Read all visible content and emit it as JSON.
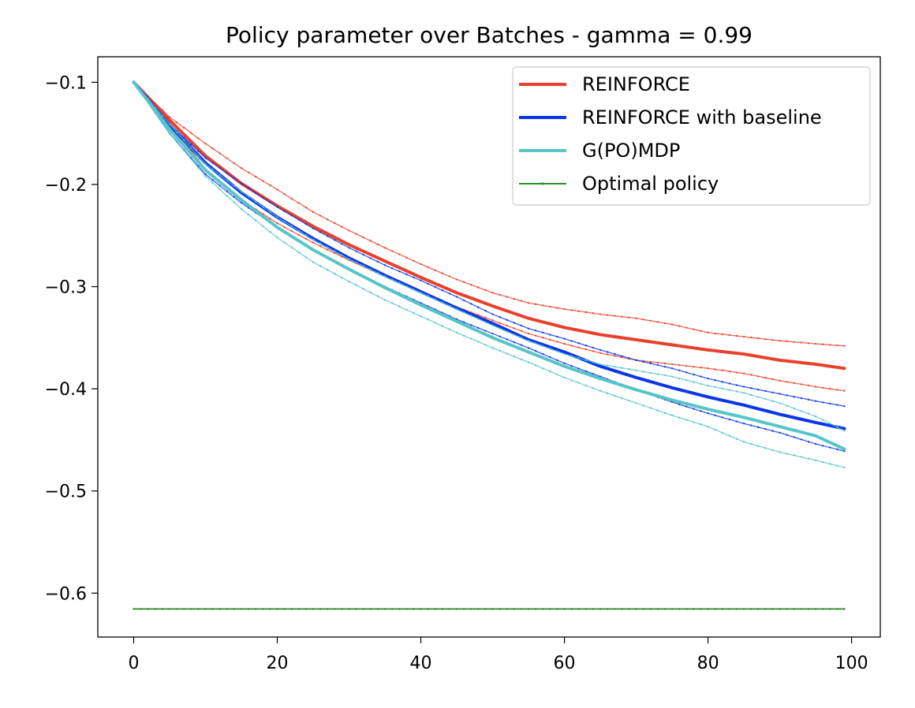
{
  "chart_data": {
    "type": "line",
    "title": "Policy parameter over Batches - gamma = 0.99",
    "xlabel": "",
    "ylabel": "",
    "xlim": [
      -5,
      104
    ],
    "ylim": [
      -0.643,
      -0.075
    ],
    "x_ticks": [
      0,
      20,
      40,
      60,
      80,
      100
    ],
    "y_ticks": [
      -0.6,
      -0.5,
      -0.4,
      -0.3,
      -0.2,
      -0.1
    ],
    "x_tick_labels": [
      "0",
      "20",
      "40",
      "60",
      "80",
      "100"
    ],
    "y_tick_labels": [
      "−0.6",
      "−0.5",
      "−0.4",
      "−0.3",
      "−0.2",
      "−0.1"
    ],
    "grid": false,
    "legend_position": "top-right",
    "x_max_index": 99,
    "series": [
      {
        "name": "REINFORCE",
        "color": "#e8412b",
        "kind": "mean",
        "points": [
          [
            0,
            -0.1
          ],
          [
            5,
            -0.137
          ],
          [
            10,
            -0.172
          ],
          [
            15,
            -0.199
          ],
          [
            20,
            -0.221
          ],
          [
            25,
            -0.241
          ],
          [
            30,
            -0.259
          ],
          [
            35,
            -0.275
          ],
          [
            40,
            -0.291
          ],
          [
            45,
            -0.306
          ],
          [
            50,
            -0.319
          ],
          [
            55,
            -0.331
          ],
          [
            60,
            -0.34
          ],
          [
            65,
            -0.347
          ],
          [
            70,
            -0.352
          ],
          [
            75,
            -0.357
          ],
          [
            80,
            -0.362
          ],
          [
            85,
            -0.366
          ],
          [
            90,
            -0.372
          ],
          [
            95,
            -0.376
          ],
          [
            99,
            -0.38
          ]
        ]
      },
      {
        "name": "REINFORCE upper band",
        "color": "#e8412b",
        "kind": "band",
        "points": [
          [
            0,
            -0.1
          ],
          [
            5,
            -0.134
          ],
          [
            10,
            -0.16
          ],
          [
            15,
            -0.184
          ],
          [
            20,
            -0.205
          ],
          [
            25,
            -0.227
          ],
          [
            30,
            -0.245
          ],
          [
            35,
            -0.262
          ],
          [
            40,
            -0.278
          ],
          [
            45,
            -0.293
          ],
          [
            50,
            -0.306
          ],
          [
            55,
            -0.316
          ],
          [
            60,
            -0.322
          ],
          [
            65,
            -0.327
          ],
          [
            70,
            -0.331
          ],
          [
            75,
            -0.337
          ],
          [
            80,
            -0.345
          ],
          [
            85,
            -0.349
          ],
          [
            90,
            -0.353
          ],
          [
            95,
            -0.356
          ],
          [
            99,
            -0.358
          ]
        ]
      },
      {
        "name": "REINFORCE lower band",
        "color": "#e8412b",
        "kind": "band",
        "points": [
          [
            0,
            -0.1
          ],
          [
            5,
            -0.14
          ],
          [
            10,
            -0.185
          ],
          [
            15,
            -0.215
          ],
          [
            20,
            -0.238
          ],
          [
            25,
            -0.257
          ],
          [
            30,
            -0.274
          ],
          [
            35,
            -0.29
          ],
          [
            40,
            -0.305
          ],
          [
            45,
            -0.32
          ],
          [
            50,
            -0.333
          ],
          [
            55,
            -0.346
          ],
          [
            60,
            -0.356
          ],
          [
            65,
            -0.365
          ],
          [
            70,
            -0.372
          ],
          [
            75,
            -0.376
          ],
          [
            80,
            -0.38
          ],
          [
            85,
            -0.385
          ],
          [
            90,
            -0.392
          ],
          [
            95,
            -0.398
          ],
          [
            99,
            -0.402
          ]
        ]
      },
      {
        "name": "REINFORCE with baseline",
        "color": "#0b36e8",
        "kind": "mean",
        "points": [
          [
            0,
            -0.1
          ],
          [
            5,
            -0.142
          ],
          [
            10,
            -0.179
          ],
          [
            15,
            -0.208
          ],
          [
            20,
            -0.232
          ],
          [
            25,
            -0.253
          ],
          [
            30,
            -0.272
          ],
          [
            35,
            -0.289
          ],
          [
            40,
            -0.305
          ],
          [
            45,
            -0.321
          ],
          [
            50,
            -0.336
          ],
          [
            55,
            -0.352
          ],
          [
            60,
            -0.364
          ],
          [
            65,
            -0.378
          ],
          [
            70,
            -0.389
          ],
          [
            75,
            -0.399
          ],
          [
            80,
            -0.408
          ],
          [
            85,
            -0.416
          ],
          [
            90,
            -0.425
          ],
          [
            95,
            -0.433
          ],
          [
            99,
            -0.439
          ]
        ]
      },
      {
        "name": "REINFORCE with baseline upper band",
        "color": "#0b36e8",
        "kind": "band",
        "points": [
          [
            0,
            -0.1
          ],
          [
            5,
            -0.141
          ],
          [
            10,
            -0.174
          ],
          [
            15,
            -0.199
          ],
          [
            20,
            -0.222
          ],
          [
            25,
            -0.243
          ],
          [
            30,
            -0.262
          ],
          [
            35,
            -0.279
          ],
          [
            40,
            -0.294
          ],
          [
            45,
            -0.31
          ],
          [
            50,
            -0.327
          ],
          [
            55,
            -0.341
          ],
          [
            60,
            -0.351
          ],
          [
            65,
            -0.362
          ],
          [
            70,
            -0.372
          ],
          [
            75,
            -0.38
          ],
          [
            80,
            -0.39
          ],
          [
            85,
            -0.398
          ],
          [
            90,
            -0.405
          ],
          [
            95,
            -0.412
          ],
          [
            99,
            -0.417
          ]
        ]
      },
      {
        "name": "REINFORCE with baseline lower band",
        "color": "#0b36e8",
        "kind": "band",
        "points": [
          [
            0,
            -0.1
          ],
          [
            5,
            -0.15
          ],
          [
            10,
            -0.19
          ],
          [
            15,
            -0.218
          ],
          [
            20,
            -0.242
          ],
          [
            25,
            -0.264
          ],
          [
            30,
            -0.283
          ],
          [
            35,
            -0.3
          ],
          [
            40,
            -0.316
          ],
          [
            45,
            -0.332
          ],
          [
            50,
            -0.346
          ],
          [
            55,
            -0.36
          ],
          [
            60,
            -0.375
          ],
          [
            65,
            -0.388
          ],
          [
            70,
            -0.401
          ],
          [
            75,
            -0.413
          ],
          [
            80,
            -0.424
          ],
          [
            85,
            -0.434
          ],
          [
            90,
            -0.443
          ],
          [
            95,
            -0.454
          ],
          [
            99,
            -0.461
          ]
        ]
      },
      {
        "name": "G(PO)MDP",
        "color": "#57c5c7",
        "kind": "mean",
        "points": [
          [
            0,
            -0.1
          ],
          [
            5,
            -0.146
          ],
          [
            10,
            -0.186
          ],
          [
            15,
            -0.215
          ],
          [
            20,
            -0.242
          ],
          [
            25,
            -0.264
          ],
          [
            30,
            -0.283
          ],
          [
            35,
            -0.301
          ],
          [
            40,
            -0.318
          ],
          [
            45,
            -0.334
          ],
          [
            50,
            -0.35
          ],
          [
            55,
            -0.364
          ],
          [
            60,
            -0.378
          ],
          [
            65,
            -0.39
          ],
          [
            70,
            -0.401
          ],
          [
            75,
            -0.411
          ],
          [
            80,
            -0.42
          ],
          [
            85,
            -0.428
          ],
          [
            90,
            -0.437
          ],
          [
            95,
            -0.446
          ],
          [
            99,
            -0.459
          ]
        ]
      },
      {
        "name": "G(PO)MDP upper band",
        "color": "#57c5c7",
        "kind": "band",
        "points": [
          [
            0,
            -0.1
          ],
          [
            5,
            -0.141
          ],
          [
            10,
            -0.18
          ],
          [
            15,
            -0.207
          ],
          [
            20,
            -0.232
          ],
          [
            25,
            -0.254
          ],
          [
            30,
            -0.273
          ],
          [
            35,
            -0.29
          ],
          [
            40,
            -0.306
          ],
          [
            45,
            -0.322
          ],
          [
            50,
            -0.338
          ],
          [
            55,
            -0.353
          ],
          [
            60,
            -0.366
          ],
          [
            65,
            -0.376
          ],
          [
            70,
            -0.382
          ],
          [
            75,
            -0.388
          ],
          [
            80,
            -0.397
          ],
          [
            85,
            -0.404
          ],
          [
            90,
            -0.414
          ],
          [
            95,
            -0.427
          ],
          [
            99,
            -0.441
          ]
        ]
      },
      {
        "name": "G(PO)MDP lower band",
        "color": "#57c5c7",
        "kind": "band",
        "points": [
          [
            0,
            -0.1
          ],
          [
            5,
            -0.15
          ],
          [
            10,
            -0.192
          ],
          [
            15,
            -0.224
          ],
          [
            20,
            -0.252
          ],
          [
            25,
            -0.276
          ],
          [
            30,
            -0.295
          ],
          [
            35,
            -0.313
          ],
          [
            40,
            -0.329
          ],
          [
            45,
            -0.345
          ],
          [
            50,
            -0.36
          ],
          [
            55,
            -0.374
          ],
          [
            60,
            -0.389
          ],
          [
            65,
            -0.402
          ],
          [
            70,
            -0.414
          ],
          [
            75,
            -0.426
          ],
          [
            80,
            -0.437
          ],
          [
            85,
            -0.452
          ],
          [
            90,
            -0.462
          ],
          [
            95,
            -0.47
          ],
          [
            99,
            -0.477
          ]
        ]
      },
      {
        "name": "Optimal policy",
        "color": "#2e8b2e",
        "kind": "optimal",
        "points": [
          [
            0,
            -0.6155
          ],
          [
            99,
            -0.6155
          ]
        ]
      }
    ],
    "legend": [
      {
        "label": "REINFORCE",
        "color": "#e8412b",
        "style": "thick"
      },
      {
        "label": "REINFORCE with baseline",
        "color": "#0b36e8",
        "style": "thick"
      },
      {
        "label": "G(PO)MDP",
        "color": "#57c5c7",
        "style": "thick"
      },
      {
        "label": "Optimal policy",
        "color": "#2e8b2e",
        "style": "thin"
      }
    ]
  }
}
